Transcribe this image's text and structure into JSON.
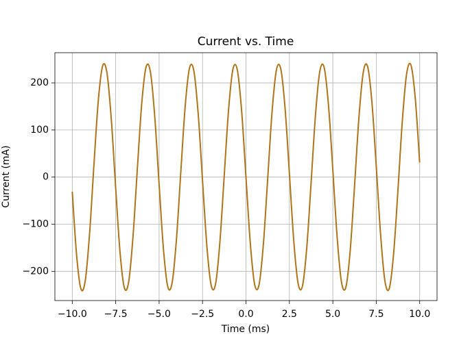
{
  "chart_data": {
    "type": "line",
    "title": "Current vs. Time",
    "xlabel": "Time (ms)",
    "ylabel": "Current (mA)",
    "x": [
      -10,
      -9.75,
      -9.5,
      -9.25,
      -9,
      -8.75,
      -8.5,
      -8.25,
      -8,
      -7.75,
      -7.5,
      -7.25,
      -7,
      -6.75,
      -6.5,
      -6.25,
      -6,
      -5.75,
      -5.5,
      -5.25,
      -5,
      -4.75,
      -4.5,
      -4.25,
      -4,
      -3.75,
      -3.5,
      -3.25,
      -3,
      -2.75,
      -2.5,
      -2.25,
      -2,
      -1.75,
      -1.5,
      -1.25,
      -1,
      -0.75,
      -0.5,
      -0.25,
      0,
      0.25,
      0.5,
      0.75,
      1,
      1.25,
      1.5,
      1.75,
      2,
      2.25,
      2.5,
      2.75,
      3,
      3.25,
      3.5,
      3.75,
      4,
      4.25,
      4.5,
      4.75,
      5,
      5.25,
      5.5,
      5.75,
      6,
      6.25,
      6.5,
      6.75,
      7,
      7.25,
      7.5,
      7.75,
      8,
      8.25,
      8.5,
      8.75,
      9,
      9.25,
      9.5,
      9.75,
      10
    ],
    "series": [
      {
        "name": "Current",
        "color": "#b07418",
        "values": [
          -31.1,
          -165.6,
          -237.4,
          -219.4,
          -118.5,
          27.2,
          162.5,
          236.2,
          220.6,
          121.6,
          -23.3,
          -159.3,
          -235.0,
          -221.8,
          -124.7,
          19.4,
          156.2,
          233.8,
          223.0,
          127.9,
          -15.6,
          -153.0,
          -232.6,
          -224.2,
          -131.0,
          11.7,
          149.9,
          231.4,
          225.4,
          134.2,
          -7.8,
          -146.8,
          -230.2,
          -226.6,
          -137.3,
          3.9,
          143.6,
          229.0,
          227.8,
          140.5,
          0,
          -140.5,
          -227.8,
          -229.0,
          -143.6,
          -3.9,
          137.3,
          226.6,
          230.2,
          146.8,
          7.8,
          -134.2,
          -225.4,
          -231.4,
          -149.9,
          -11.7,
          131.0,
          224.2,
          232.6,
          153.0,
          15.6,
          -127.9,
          -223.0,
          -233.8,
          -156.2,
          -19.4,
          124.7,
          221.8,
          235.0,
          159.3,
          23.3,
          -121.6,
          -220.6,
          -236.2,
          -162.5,
          -27.2,
          118.5,
          219.4,
          237.4,
          165.6,
          31.1
        ]
      }
    ],
    "xlim": [
      -11,
      11
    ],
    "ylim": [
      -262,
      264
    ],
    "xticks": [
      {
        "value": -10,
        "label": "−10.0"
      },
      {
        "value": -7.5,
        "label": "−7.5"
      },
      {
        "value": -5,
        "label": "−5.0"
      },
      {
        "value": -2.5,
        "label": "−2.5"
      },
      {
        "value": 0,
        "label": "0.0"
      },
      {
        "value": 2.5,
        "label": "2.5"
      },
      {
        "value": 5,
        "label": "5.0"
      },
      {
        "value": 7.5,
        "label": "7.5"
      },
      {
        "value": 10,
        "label": "10.0"
      }
    ],
    "yticks": [
      {
        "value": -200,
        "label": "−200"
      },
      {
        "value": -100,
        "label": "−100"
      },
      0,
      100,
      200
    ],
    "grid": true
  }
}
